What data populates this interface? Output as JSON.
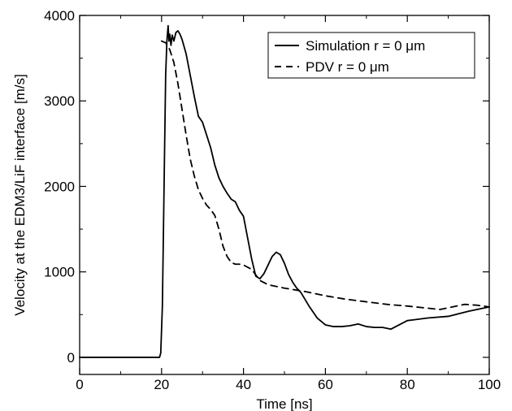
{
  "chart_data": {
    "type": "line",
    "xlabel": "Time [ns]",
    "ylabel": "Velocity at the EDM3/LiF interface [m/s]",
    "xlim": [
      0,
      100
    ],
    "ylim": [
      -200,
      4000
    ],
    "x_ticks": [
      0,
      20,
      40,
      60,
      80,
      100
    ],
    "y_ticks": [
      0,
      1000,
      2000,
      3000,
      4000
    ],
    "grid": false,
    "legend_position": "top-right",
    "series": [
      {
        "name": "Simulation r = 0  μm",
        "style": "solid",
        "color": "#000000",
        "x": [
          0,
          19.5,
          19.8,
          20.2,
          20.7,
          21.0,
          21.3,
          21.6,
          21.8,
          22.0,
          22.3,
          22.6,
          23.0,
          23.5,
          24.0,
          24.5,
          25.0,
          26.0,
          27.0,
          28.0,
          29.0,
          30.0,
          31.0,
          32.0,
          33.0,
          34.0,
          35.0,
          36.0,
          37.0,
          38.0,
          39.0,
          40.0,
          41.0,
          42.0,
          43.0,
          44.0,
          45.0,
          46.0,
          47.0,
          48.0,
          49.0,
          50.0,
          51.0,
          52.0,
          53.0,
          54.0,
          56.0,
          58.0,
          60.0,
          62.0,
          64.0,
          66.0,
          68.0,
          70.0,
          72.0,
          74.0,
          76.0,
          78.0,
          80.0,
          85.0,
          90.0,
          95.0,
          100.0
        ],
        "y": [
          0,
          0,
          50,
          600,
          2300,
          3300,
          3700,
          3880,
          3700,
          3780,
          3650,
          3770,
          3700,
          3800,
          3820,
          3780,
          3720,
          3550,
          3300,
          3050,
          2820,
          2750,
          2600,
          2450,
          2250,
          2100,
          2000,
          1920,
          1850,
          1820,
          1720,
          1650,
          1400,
          1150,
          950,
          920,
          980,
          1080,
          1180,
          1230,
          1200,
          1100,
          970,
          880,
          810,
          760,
          600,
          460,
          380,
          360,
          360,
          370,
          390,
          360,
          350,
          350,
          330,
          380,
          430,
          460,
          480,
          540,
          590
        ]
      },
      {
        "name": "PDV r = 0  μm",
        "style": "dashed",
        "color": "#000000",
        "x": [
          20.0,
          21.0,
          22.0,
          23.0,
          24.0,
          25.0,
          26.0,
          27.0,
          28.0,
          29.0,
          30.0,
          31.0,
          32.0,
          33.0,
          34.0,
          35.0,
          36.0,
          37.0,
          38.0,
          39.0,
          40.0,
          42.0,
          44.0,
          46.0,
          50.0,
          55.0,
          60.0,
          65.0,
          70.0,
          75.0,
          80.0,
          85.0,
          88.0,
          91.0,
          94.0,
          97.0,
          100.0
        ],
        "y": [
          3700,
          3680,
          3600,
          3450,
          3200,
          2900,
          2600,
          2320,
          2120,
          1960,
          1860,
          1780,
          1730,
          1660,
          1500,
          1300,
          1180,
          1110,
          1090,
          1090,
          1080,
          1030,
          900,
          850,
          810,
          770,
          720,
          680,
          650,
          620,
          600,
          575,
          560,
          590,
          620,
          610,
          590
        ]
      }
    ]
  }
}
